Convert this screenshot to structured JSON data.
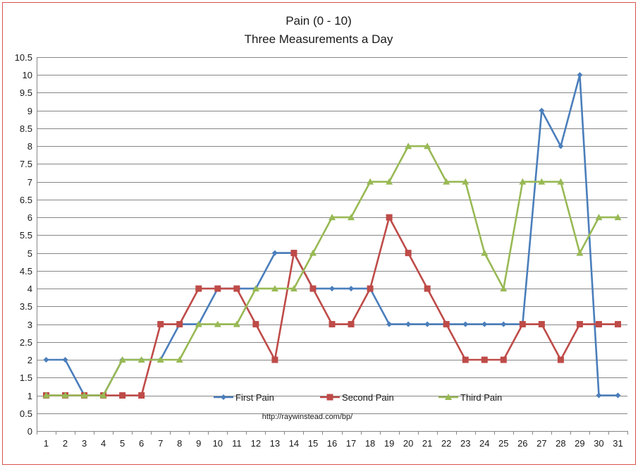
{
  "chart_data": {
    "type": "line",
    "title": "Pain (0 - 10)",
    "subtitle": "Three Measurements a Day",
    "xlabel": "",
    "ylabel": "",
    "categories": [
      "1",
      "2",
      "3",
      "4",
      "5",
      "6",
      "7",
      "8",
      "9",
      "10",
      "11",
      "12",
      "13",
      "14",
      "15",
      "16",
      "17",
      "18",
      "19",
      "20",
      "21",
      "22",
      "23",
      "24",
      "25",
      "26",
      "27",
      "28",
      "29",
      "30",
      "31"
    ],
    "ylim": [
      0,
      10.5
    ],
    "ytick_step": 0.5,
    "yticks": [
      "0",
      "0.5",
      "1",
      "1.5",
      "2",
      "2.5",
      "3",
      "3.5",
      "4",
      "4.5",
      "5",
      "5.5",
      "6",
      "6.5",
      "7",
      "7.5",
      "8",
      "8.5",
      "9",
      "9.5",
      "10",
      "10.5"
    ],
    "grid": true,
    "legend_position": "bottom-inside",
    "source_note": "http://raywinstead.com/bp/",
    "series": [
      {
        "name": "First Pain",
        "color": "#4a7ebb",
        "marker": "diamond",
        "values": [
          2,
          2,
          1,
          1,
          2,
          2,
          2,
          3,
          3,
          4,
          4,
          4,
          5,
          5,
          4,
          4,
          4,
          4,
          3,
          3,
          3,
          3,
          3,
          3,
          3,
          3,
          9,
          8,
          10,
          1,
          1
        ]
      },
      {
        "name": "Second Pain",
        "color": "#be4b48",
        "marker": "square",
        "values": [
          1,
          1,
          1,
          1,
          1,
          1,
          3,
          3,
          4,
          4,
          4,
          3,
          2,
          5,
          4,
          3,
          3,
          4,
          6,
          5,
          4,
          3,
          2,
          2,
          2,
          3,
          3,
          2,
          3,
          3,
          3
        ]
      },
      {
        "name": "Third Pain",
        "color": "#98b954",
        "marker": "triangle",
        "values": [
          1,
          1,
          1,
          1,
          2,
          2,
          2,
          2,
          3,
          3,
          3,
          4,
          4,
          4,
          5,
          6,
          6,
          7,
          7,
          8,
          8,
          7,
          7,
          5,
          4,
          7,
          7,
          7,
          5,
          6,
          6
        ]
      }
    ],
    "frame_color": "#d9534f",
    "grid_color": "#868686"
  }
}
